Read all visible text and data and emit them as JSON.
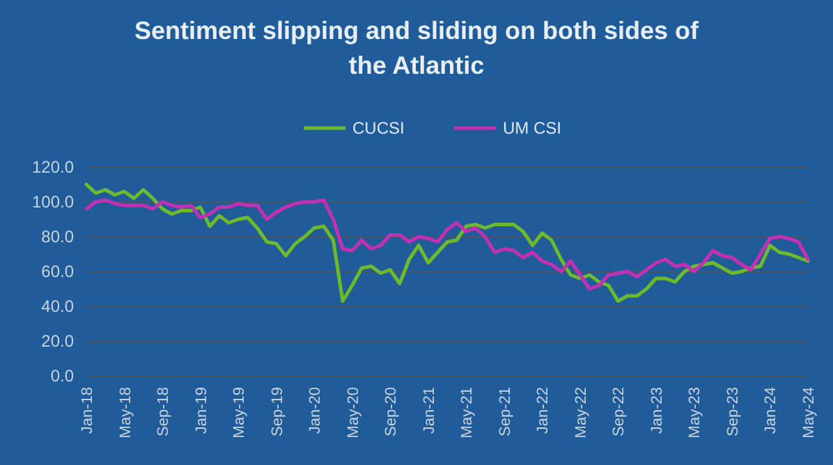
{
  "chart_data": {
    "type": "line",
    "title": "Sentiment slipping and sliding on both sides of the Atlantic",
    "categories": [
      "Jan-18",
      null,
      null,
      null,
      "May-18",
      null,
      null,
      null,
      "Sep-18",
      null,
      null,
      null,
      "Jan-19",
      null,
      null,
      null,
      "May-19",
      null,
      null,
      null,
      "Sep-19",
      null,
      null,
      null,
      "Jan-20",
      null,
      null,
      null,
      "May-20",
      null,
      null,
      null,
      "Sep-20",
      null,
      null,
      null,
      "Jan-21",
      null,
      null,
      null,
      "May-21",
      null,
      null,
      null,
      "Sep-21",
      null,
      null,
      null,
      "Jan-22",
      null,
      null,
      null,
      "May-22",
      null,
      null,
      null,
      "Sep-22",
      null,
      null,
      null,
      "Jan-23",
      null,
      null,
      null,
      "May-23",
      null,
      null,
      null,
      "Sep-23",
      null,
      null,
      null,
      "Jan-24",
      null,
      null,
      null,
      "May-24"
    ],
    "series": [
      {
        "name": "CUCSI",
        "color": "#6fba2c",
        "values": [
          110,
          105,
          107,
          104,
          106,
          102,
          107,
          102,
          96,
          93,
          95,
          95,
          97,
          86,
          92,
          88,
          90,
          91,
          85,
          77,
          76,
          69,
          76,
          80,
          85,
          86,
          78,
          43,
          52,
          62,
          63,
          59,
          61,
          53,
          67,
          75,
          65,
          71,
          77,
          78,
          86,
          87,
          85,
          87,
          87,
          87,
          83,
          75,
          82,
          78,
          67,
          58,
          56,
          58,
          54,
          52,
          43,
          46,
          46,
          50,
          56,
          56,
          54,
          60,
          63,
          64,
          65,
          62,
          59,
          60,
          62,
          63,
          75,
          71,
          70,
          68,
          66
        ]
      },
      {
        "name": "UM CSI",
        "color": "#c42fb5",
        "values": [
          96,
          100,
          101,
          99,
          98,
          98,
          98,
          96,
          100,
          98,
          97,
          98,
          91,
          93,
          97,
          97,
          99,
          98,
          98,
          90,
          94,
          97,
          99,
          100,
          100,
          101,
          90,
          73,
          72,
          78,
          73,
          75,
          81,
          81,
          77,
          80,
          79,
          77,
          84,
          88,
          83,
          85,
          80,
          71,
          73,
          72,
          68,
          71,
          66,
          64,
          60,
          66,
          58,
          50,
          52,
          58,
          59,
          60,
          57,
          61,
          65,
          67,
          63,
          64,
          60,
          65,
          72,
          69,
          68,
          64,
          61,
          70,
          79,
          80,
          79,
          77,
          67
        ]
      }
    ],
    "ylim": [
      0,
      120
    ],
    "yticks": [
      {
        "value": 0,
        "label": "0.0"
      },
      {
        "value": 20,
        "label": "20.0"
      },
      {
        "value": 40,
        "label": "40.0"
      },
      {
        "value": 60,
        "label": "60.0"
      },
      {
        "value": 80,
        "label": "80.0"
      },
      {
        "value": 100,
        "label": "100.0"
      },
      {
        "value": 120,
        "label": "120.0"
      }
    ],
    "grid": "y",
    "legend": "top",
    "line_style": "solid"
  }
}
